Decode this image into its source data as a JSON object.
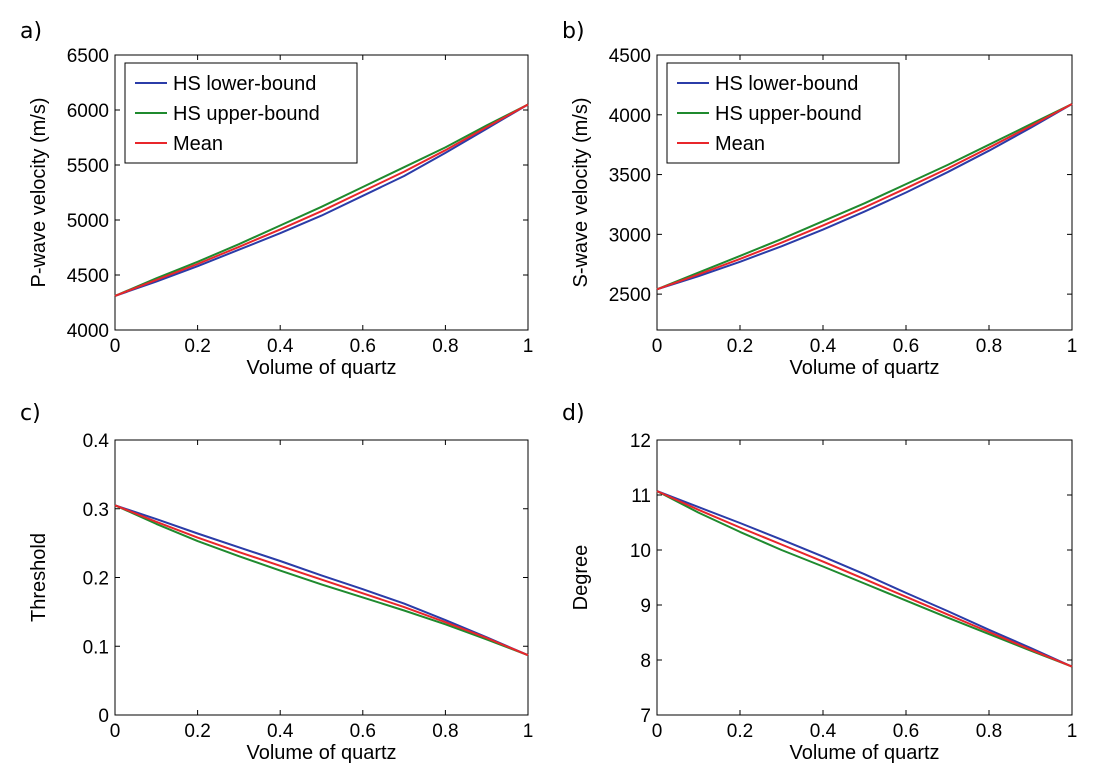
{
  "chart_data": [
    {
      "type": "line",
      "panel_label": "a)",
      "xlabel": "Volume of quartz",
      "ylabel": "P-wave velocity (m/s)",
      "xlim": [
        0,
        1
      ],
      "ylim": [
        4000,
        6500
      ],
      "xticks": [
        0,
        0.2,
        0.4,
        0.6,
        0.8,
        1
      ],
      "xtick_labels": [
        "0",
        "0.2",
        "0.4",
        "0.6",
        "0.8",
        "1"
      ],
      "yticks": [
        4000,
        4500,
        5000,
        5500,
        6000,
        6500
      ],
      "ytick_labels": [
        "4000",
        "4500",
        "5000",
        "5500",
        "6000",
        "6500"
      ],
      "grid": false,
      "legend": "top-left",
      "x": [
        0,
        0.1,
        0.2,
        0.3,
        0.4,
        0.5,
        0.6,
        0.7,
        0.8,
        0.9,
        1
      ],
      "series": [
        {
          "name": "HS lower-bound",
          "color": "#2b3ca8",
          "values": [
            4310,
            4440,
            4580,
            4730,
            4880,
            5040,
            5220,
            5400,
            5610,
            5830,
            6050
          ]
        },
        {
          "name": "HS upper-bound",
          "color": "#1f8a2e",
          "values": [
            4310,
            4470,
            4620,
            4780,
            4950,
            5120,
            5300,
            5480,
            5660,
            5860,
            6050
          ]
        },
        {
          "name": "Mean",
          "color": "#e8262b",
          "values": [
            4310,
            4455,
            4600,
            4755,
            4915,
            5080,
            5260,
            5440,
            5635,
            5845,
            6050
          ]
        }
      ]
    },
    {
      "type": "line",
      "panel_label": "b)",
      "xlabel": "Volume of quartz",
      "ylabel": "S-wave velocity (m/s)",
      "xlim": [
        0,
        1
      ],
      "ylim": [
        2200,
        4500
      ],
      "xticks": [
        0,
        0.2,
        0.4,
        0.6,
        0.8,
        1
      ],
      "xtick_labels": [
        "0",
        "0.2",
        "0.4",
        "0.6",
        "0.8",
        "1"
      ],
      "yticks": [
        2500,
        3000,
        3500,
        4000,
        4500
      ],
      "ytick_labels": [
        "2500",
        "3000",
        "3500",
        "4000",
        "4500"
      ],
      "grid": false,
      "legend": "top-left",
      "x": [
        0,
        0.1,
        0.2,
        0.3,
        0.4,
        0.5,
        0.6,
        0.7,
        0.8,
        0.9,
        1
      ],
      "series": [
        {
          "name": "HS lower-bound",
          "color": "#2b3ca8",
          "values": [
            2540,
            2650,
            2770,
            2900,
            3040,
            3190,
            3350,
            3520,
            3700,
            3890,
            4090
          ]
        },
        {
          "name": "HS upper-bound",
          "color": "#1f8a2e",
          "values": [
            2540,
            2680,
            2820,
            2960,
            3110,
            3260,
            3420,
            3580,
            3750,
            3920,
            4090
          ]
        },
        {
          "name": "Mean",
          "color": "#e8262b",
          "values": [
            2540,
            2665,
            2795,
            2930,
            3075,
            3225,
            3385,
            3550,
            3725,
            3905,
            4090
          ]
        }
      ]
    },
    {
      "type": "line",
      "panel_label": "c)",
      "xlabel": "Volume of quartz",
      "ylabel": "Threshold",
      "xlim": [
        0,
        1
      ],
      "ylim": [
        0,
        0.4
      ],
      "xticks": [
        0,
        0.2,
        0.4,
        0.6,
        0.8,
        1
      ],
      "xtick_labels": [
        "0",
        "0.2",
        "0.4",
        "0.6",
        "0.8",
        "1"
      ],
      "yticks": [
        0,
        0.1,
        0.2,
        0.3,
        0.4
      ],
      "ytick_labels": [
        "0",
        "0.1",
        "0.2",
        "0.3",
        "0.4"
      ],
      "grid": false,
      "x": [
        0,
        0.1,
        0.2,
        0.3,
        0.4,
        0.5,
        0.6,
        0.7,
        0.8,
        0.9,
        1
      ],
      "series": [
        {
          "color": "#2b3ca8",
          "values": [
            0.305,
            0.285,
            0.264,
            0.244,
            0.224,
            0.203,
            0.183,
            0.162,
            0.138,
            0.113,
            0.087
          ]
        },
        {
          "color": "#1f8a2e",
          "values": [
            0.305,
            0.278,
            0.253,
            0.231,
            0.21,
            0.19,
            0.171,
            0.152,
            0.132,
            0.11,
            0.087
          ]
        },
        {
          "color": "#e8262b",
          "values": [
            0.305,
            0.281,
            0.258,
            0.237,
            0.217,
            0.197,
            0.177,
            0.157,
            0.135,
            0.112,
            0.087
          ]
        }
      ]
    },
    {
      "type": "line",
      "panel_label": "d)",
      "xlabel": "Volume of quartz",
      "ylabel": "Degree",
      "xlim": [
        0,
        1
      ],
      "ylim": [
        7,
        12
      ],
      "xticks": [
        0,
        0.2,
        0.4,
        0.6,
        0.8,
        1
      ],
      "xtick_labels": [
        "0",
        "0.2",
        "0.4",
        "0.6",
        "0.8",
        "1"
      ],
      "yticks": [
        7,
        8,
        9,
        10,
        11,
        12
      ],
      "ytick_labels": [
        "7",
        "8",
        "9",
        "10",
        "11",
        "12"
      ],
      "grid": false,
      "x": [
        0,
        0.1,
        0.2,
        0.3,
        0.4,
        0.5,
        0.6,
        0.7,
        0.8,
        0.9,
        1
      ],
      "series": [
        {
          "color": "#2b3ca8",
          "values": [
            11.07,
            10.78,
            10.49,
            10.19,
            9.88,
            9.56,
            9.22,
            8.89,
            8.55,
            8.22,
            7.88
          ]
        },
        {
          "color": "#1f8a2e",
          "values": [
            11.07,
            10.68,
            10.33,
            10.0,
            9.7,
            9.39,
            9.08,
            8.77,
            8.47,
            8.17,
            7.88
          ]
        },
        {
          "color": "#e8262b",
          "values": [
            11.07,
            10.73,
            10.41,
            10.1,
            9.79,
            9.47,
            9.15,
            8.83,
            8.51,
            8.19,
            7.88
          ]
        }
      ]
    }
  ]
}
